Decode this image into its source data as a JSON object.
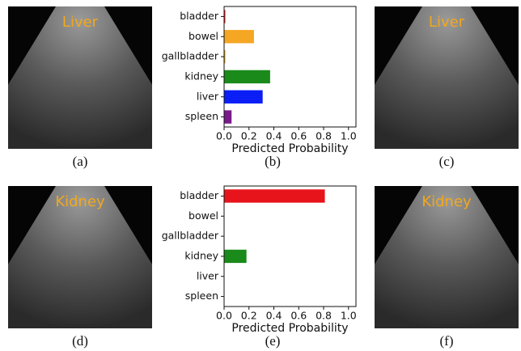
{
  "images": [
    {
      "label": "Liver",
      "caption": "(a)"
    },
    {
      "label": "Liver",
      "caption": "(c)"
    },
    {
      "label": "Kidney",
      "caption": "(d)"
    },
    {
      "label": "Kidney",
      "caption": "(f)"
    }
  ],
  "chart_data": [
    {
      "type": "barh",
      "caption": "(b)",
      "xlabel": "Predicted Probability",
      "categories": [
        "bladder",
        "bowel",
        "gallbladder",
        "kidney",
        "liver",
        "spleen"
      ],
      "values": [
        0.01,
        0.24,
        0.01,
        0.37,
        0.31,
        0.06
      ],
      "colors": [
        "#e8141c",
        "#f5a623",
        "#d4a017",
        "#1a8a1a",
        "#0a1ef5",
        "#7a1a8a"
      ],
      "xlim": [
        0,
        1.06
      ],
      "xticks": [
        {
          "value": 0,
          "label": "0.0"
        },
        0.2,
        0.4,
        0.6,
        0.8,
        {
          "value": 1,
          "label": "1.0"
        }
      ]
    },
    {
      "type": "barh",
      "caption": "(e)",
      "xlabel": "Predicted Probability",
      "categories": [
        "bladder",
        "bowel",
        "gallbladder",
        "kidney",
        "liver",
        "spleen"
      ],
      "values": [
        0.81,
        0,
        0,
        0.18,
        0,
        0
      ],
      "colors": [
        "#e8141c",
        "#f5a623",
        "#d4a017",
        "#1a8a1a",
        "#0a1ef5",
        "#7a1a8a"
      ],
      "xlim": [
        0,
        1.06
      ],
      "xticks": [
        {
          "value": 0,
          "label": "0.0"
        },
        0.2,
        0.4,
        0.6,
        0.8,
        {
          "value": 1,
          "label": "1.0"
        }
      ]
    }
  ]
}
